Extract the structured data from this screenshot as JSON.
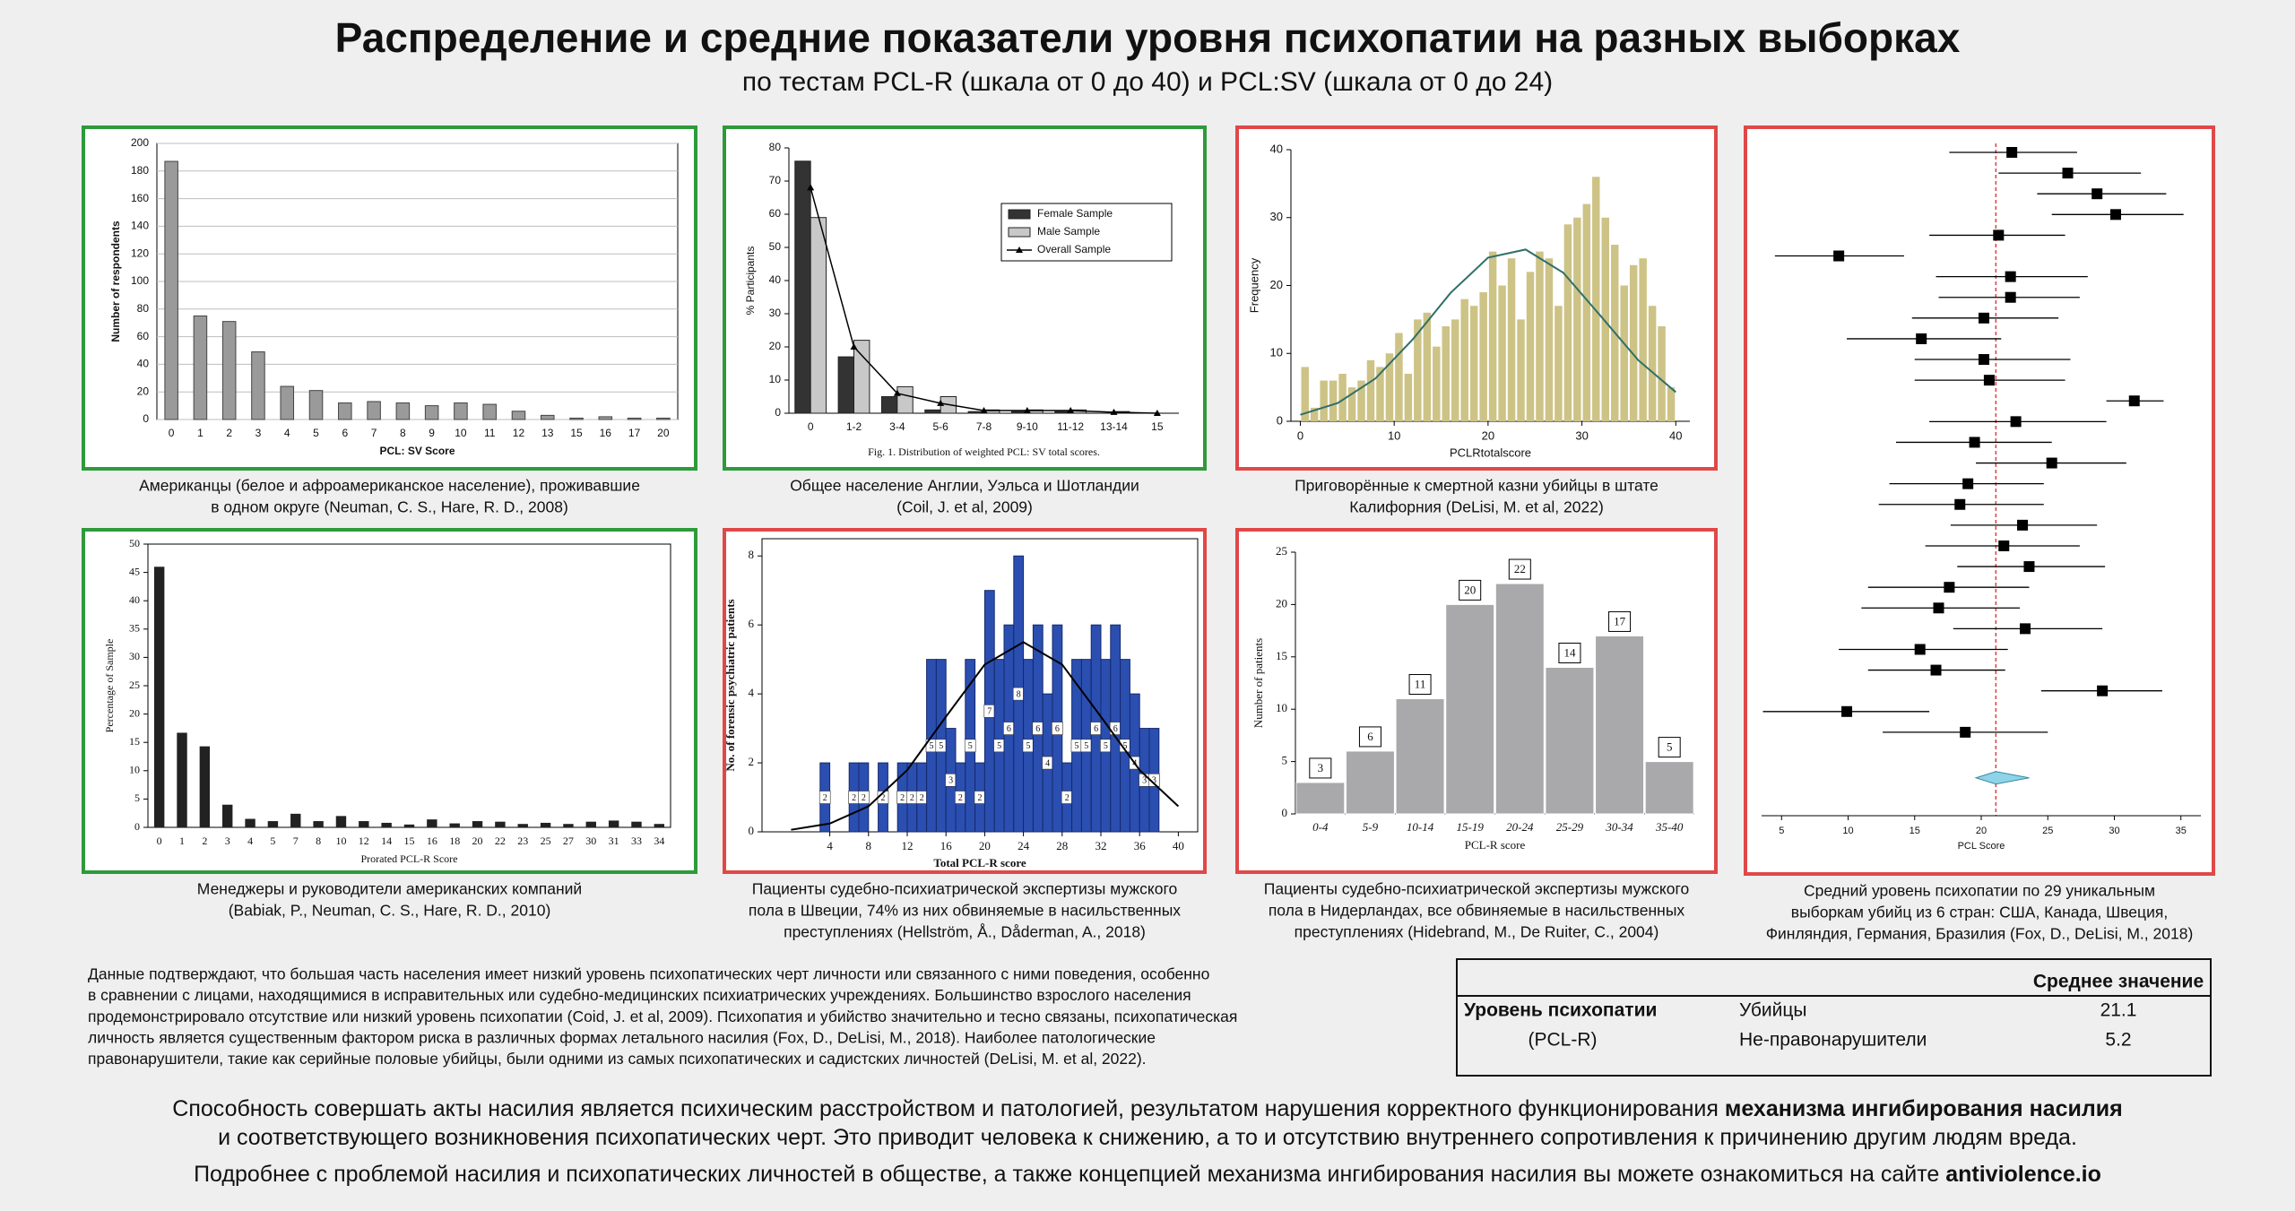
{
  "header": {
    "title": "Распределение и средние показатели уровня психопатии на разных выборках",
    "subtitle": "по тестам PCL-R (шкала от 0 до 40) и PCL:SV (шкала от 0 до 24)"
  },
  "chart_data": [
    {
      "type": "bar",
      "border_color": "#2e9a3a",
      "xlabel": "PCL: SV Score",
      "ylabel": "Number of respondents",
      "categories": [
        "0",
        "1",
        "2",
        "3",
        "4",
        "5",
        "6",
        "7",
        "8",
        "9",
        "10",
        "11",
        "12",
        "13",
        "15",
        "16",
        "17",
        "20"
      ],
      "values": [
        187,
        75,
        71,
        49,
        24,
        21,
        12,
        13,
        12,
        10,
        12,
        11,
        6,
        3,
        1,
        2,
        1,
        1
      ],
      "color": "#9a9a9a",
      "edge_color": "#444444",
      "ylim": [
        0,
        200
      ],
      "yticks": [
        0,
        20,
        40,
        60,
        80,
        100,
        120,
        140,
        160,
        180,
        200
      ],
      "grid": true,
      "caption": [
        "Американцы (белое и афроамериканское население), проживавшие",
        "в одном округе (Neuman, C. S., Hare, R. D., 2008)"
      ]
    },
    {
      "type": "bar",
      "border_color": "#2e9a3a",
      "ylabel": "% Participants",
      "note": "Fig. 1. Distribution of weighted PCL: SV total scores.",
      "categories": [
        "0",
        "1-2",
        "3-4",
        "5-6",
        "7-8",
        "9-10",
        "11-12",
        "13-14",
        "15"
      ],
      "series": [
        {
          "name": "Female Sample",
          "color": "#333333",
          "values": [
            76,
            17,
            5,
            1,
            0.5,
            0.5,
            0.5,
            0,
            0
          ]
        },
        {
          "name": "Male Sample",
          "color": "#c8c8c8",
          "values": [
            59,
            22,
            8,
            5,
            1,
            1,
            1,
            0.5,
            0
          ]
        },
        {
          "name": "Overall Sample",
          "color": "#000000",
          "kind": "line",
          "values": [
            68,
            20,
            6,
            3,
            0.8,
            0.8,
            0.8,
            0.3,
            0
          ]
        }
      ],
      "edge_color": "#222222",
      "legend": "upper right",
      "ylim": [
        0,
        80
      ],
      "yticks": [
        0,
        10,
        20,
        30,
        40,
        50,
        60,
        70,
        80
      ],
      "caption": [
        "Общее население Англии, Уэльса и Шотландии",
        "(Coil, J. et al, 2009)"
      ]
    },
    {
      "type": "histogram",
      "border_color": "#e04848",
      "xlabel": "PCLRtotalscore",
      "ylabel": "Frequency",
      "bins": [
        0,
        1,
        2,
        3,
        4,
        5,
        6,
        7,
        8,
        9,
        10,
        11,
        12,
        13,
        14,
        15,
        16,
        17,
        18,
        19,
        20,
        21,
        22,
        23,
        24,
        25,
        26,
        27,
        28,
        29,
        30,
        31,
        32,
        33,
        34,
        35,
        36,
        37,
        38,
        39,
        40
      ],
      "values": [
        8,
        2,
        6,
        6,
        7,
        5,
        6,
        9,
        8,
        10,
        13,
        7,
        15,
        16,
        11,
        14,
        15,
        18,
        17,
        19,
        25,
        20,
        24,
        15,
        22,
        25,
        24,
        17,
        29,
        30,
        32,
        36,
        30,
        26,
        20,
        23,
        24,
        17,
        14,
        5
      ],
      "color": "#cdc386",
      "curve": {
        "x": [
          0,
          4,
          8,
          12,
          16,
          20,
          24,
          28,
          32,
          36,
          40
        ],
        "y": [
          0.97,
          2.7,
          6.3,
          12.1,
          18.9,
          24.1,
          25.3,
          21.9,
          15.5,
          9.0,
          4.3
        ],
        "color": "#2f6f6a"
      },
      "xlim": [
        -1,
        41.5
      ],
      "xticks": [
        0,
        10,
        20,
        30,
        40
      ],
      "ylim": [
        0,
        40
      ],
      "yticks": [
        0,
        10,
        20,
        30,
        40
      ],
      "caption": [
        "Приговорённые к смертной казни убийцы в штате",
        "Калифорния (DeLisi, M. et al, 2022)"
      ]
    },
    {
      "type": "forest",
      "border_color": "#e04848",
      "xlabel": "PCL Score",
      "values": [
        22.3,
        26.5,
        28.7,
        30.1,
        21.3,
        9.3,
        22.2,
        22.2,
        20.2,
        15.5,
        20.2,
        20.6,
        31.5,
        22.6,
        19.5,
        25.3,
        19.0,
        18.4,
        23.1,
        21.7,
        23.6,
        17.6,
        16.8,
        23.3,
        15.4,
        16.6,
        29.1,
        9.9,
        18.8
      ],
      "lower": [
        17.6,
        21.3,
        24.2,
        25.3,
        16.1,
        4.5,
        16.6,
        16.8,
        14.8,
        9.9,
        15.0,
        15.0,
        29.4,
        16.1,
        13.6,
        19.6,
        13.1,
        12.3,
        17.7,
        15.8,
        18.2,
        11.5,
        11.0,
        17.9,
        9.3,
        11.5,
        24.5,
        3.6,
        12.6
      ],
      "upper": [
        27.2,
        32.0,
        33.9,
        35.2,
        26.3,
        14.2,
        28.0,
        27.4,
        25.8,
        21.5,
        26.7,
        26.3,
        33.7,
        29.4,
        25.3,
        30.9,
        24.7,
        24.7,
        28.7,
        27.4,
        29.3,
        23.6,
        22.9,
        29.1,
        22.0,
        21.8,
        33.6,
        16.1,
        25.0
      ],
      "summary": {
        "value": 21.1,
        "lower": 19.6,
        "upper": 23.6,
        "color": "#8fd3e8"
      },
      "color": "#000000",
      "reference_color": "#e04040",
      "xlim": [
        3.5,
        36.5
      ],
      "xticks": [
        5,
        10,
        15,
        20,
        25,
        30,
        35
      ],
      "caption": [
        "Средний уровень психопатии по 29 уникальным",
        "выборкам убийц из 6 стран: США, Канада, Швеция,",
        "Финляндия, Германия, Бразилия (Fox, D., DeLisi, M., 2018)"
      ]
    },
    {
      "type": "bar",
      "border_color": "#2e9a3a",
      "xlabel": "Prorated PCL-R Score",
      "ylabel": "Percentage of Sample",
      "categories": [
        "0",
        "1",
        "2",
        "3",
        "4",
        "5",
        "7",
        "8",
        "10",
        "12",
        "14",
        "15",
        "16",
        "18",
        "20",
        "22",
        "23",
        "25",
        "27",
        "30",
        "31",
        "33",
        "34"
      ],
      "values": [
        46,
        16.7,
        14.3,
        4,
        1.5,
        1.1,
        2.4,
        1.1,
        2,
        1.1,
        0.8,
        0.5,
        1.4,
        0.7,
        1.1,
        1,
        0.6,
        0.8,
        0.6,
        1,
        1.2,
        1,
        0.6
      ],
      "color": "#222222",
      "ylim": [
        0,
        50
      ],
      "yticks": [
        0,
        5,
        10,
        15,
        20,
        25,
        30,
        35,
        40,
        45,
        50
      ],
      "caption": [
        "Менеджеры и руководители американских компаний",
        "(Babiak, P., Neuman, C. S., Hare, R. D., 2010)"
      ]
    },
    {
      "type": "histogram",
      "border_color": "#e04848",
      "xlabel": "Total PCL-R score",
      "ylabel": "No. of forensic psychiatric patients",
      "bins": [
        3,
        4,
        5,
        6,
        7,
        8,
        9,
        10,
        11,
        12,
        13,
        14,
        15,
        16,
        17,
        18,
        19,
        20,
        21,
        22,
        23,
        24,
        25,
        26,
        27,
        28,
        29,
        30,
        31,
        32,
        33,
        34,
        35,
        36,
        37,
        38
      ],
      "values": [
        2,
        0,
        0,
        2,
        2,
        0,
        2,
        0,
        2,
        2,
        2,
        5,
        5,
        3,
        2,
        5,
        2,
        7,
        5,
        6,
        8,
        5,
        6,
        4,
        6,
        2,
        5,
        5,
        6,
        5,
        6,
        5,
        4,
        3,
        3
      ],
      "color": "#2b4fb0",
      "edge_color": "#14286e",
      "data_labels": true,
      "curve": {
        "x": [
          0,
          4,
          8,
          12,
          16,
          20,
          24,
          28,
          32,
          36,
          40
        ],
        "y": [
          0.06,
          0.24,
          0.74,
          1.79,
          3.34,
          4.85,
          5.5,
          4.85,
          3.34,
          1.79,
          0.74
        ],
        "color": "#000000"
      },
      "xlim": [
        -3,
        42
      ],
      "xticks": [
        4,
        8,
        12,
        16,
        20,
        24,
        28,
        32,
        36,
        40
      ],
      "ylim": [
        0,
        8.5
      ],
      "yticks": [
        0,
        2,
        4,
        6,
        8
      ],
      "caption": [
        "Пациенты судебно-психиатрической экспертизы мужского",
        "пола в Швеции, 74% из них обвиняемые в насильственных",
        "преступлениях (Hellström, Å., Dåderman, A., 2018)"
      ]
    },
    {
      "type": "bar",
      "border_color": "#e04848",
      "xlabel": "PCL-R score",
      "ylabel": "Number of patients",
      "categories": [
        "0-4",
        "5-9",
        "10-14",
        "15-19",
        "20-24",
        "25-29",
        "30-34",
        "35-40"
      ],
      "values": [
        3,
        6,
        11,
        20,
        22,
        14,
        17,
        5
      ],
      "color": "#a9a9ab",
      "edge_color": "#ffffff",
      "data_labels": true,
      "ylim": [
        0,
        25
      ],
      "yticks": [
        0,
        5,
        10,
        15,
        20,
        25
      ],
      "caption": [
        "Пациенты судебно-психиатрической экспертизы мужского",
        "пола в Нидерландах, все обвиняемые в насильственных",
        "преступлениях (Hidebrand, M., De Ruiter, C., 2004)"
      ]
    }
  ],
  "paragraph": [
    "Данные подтверждают, что большая часть населения имеет низкий уровень психопатических черт личности или связанного с ними поведения, особенно",
    "в сравнении с лицами, находящимися в исправительных или судебно-медицинских психиатрических учреждениях. Большинство взрослого населения",
    "продемонстрировало отсутствие или низкий уровень психопатии (Coid, J. et al, 2009). Психопатия и убийство значительно и тесно связаны, психопатическая",
    "личность является существенным фактором риска в различных формах летального насилия (Fox, D., DeLisi, M., 2018). Наиболее патологические",
    "правонарушители, такие как серийные половые убийцы, были одними из самых психопатических и садистских личностей (DeLisi, M. et al, 2022)."
  ],
  "table": {
    "value_header": "Среднее значение",
    "rows": [
      [
        "Уровень психопатии",
        "Убийцы",
        21.1
      ],
      [
        "(PCL-R)",
        "Не-правонарушители",
        5.2
      ]
    ]
  },
  "footer": [
    {
      "text": "Способность совершать акты насилия является психическим расстройством и патологией, результатом нарушения корректного функционирования ",
      "emphasis": "механизма ингибирования насилия"
    },
    {
      "text": "и соответствующего возникновения психопатических черт. Это приводит человека к снижению, а то и отсутствию внутреннего сопротивления к причинению другим людям вреда."
    },
    {
      "text": "Подробнее с проблемой насилия и психопатических личностей в обществе, а также концепцией механизма ингибирования насилия вы можете ознакомиться на сайте ",
      "emphasis": "antiviolence.io"
    }
  ]
}
